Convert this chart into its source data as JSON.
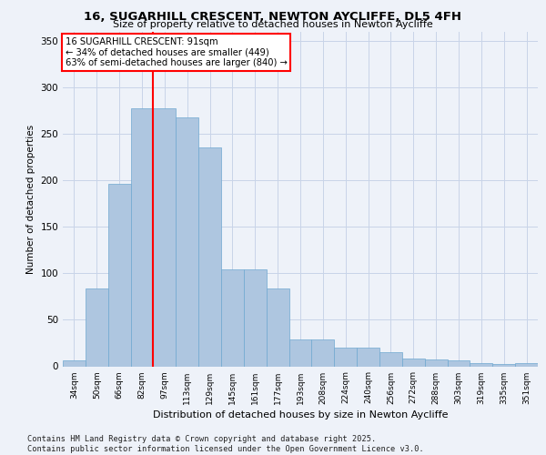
{
  "title": "16, SUGARHILL CRESCENT, NEWTON AYCLIFFE, DL5 4FH",
  "subtitle": "Size of property relative to detached houses in Newton Aycliffe",
  "xlabel": "Distribution of detached houses by size in Newton Aycliffe",
  "ylabel": "Number of detached properties",
  "categories": [
    "34sqm",
    "50sqm",
    "66sqm",
    "82sqm",
    "97sqm",
    "113sqm",
    "129sqm",
    "145sqm",
    "161sqm",
    "177sqm",
    "193sqm",
    "208sqm",
    "224sqm",
    "240sqm",
    "256sqm",
    "272sqm",
    "288sqm",
    "303sqm",
    "319sqm",
    "335sqm",
    "351sqm"
  ],
  "values": [
    6,
    84,
    196,
    278,
    278,
    268,
    236,
    104,
    104,
    84,
    29,
    29,
    20,
    20,
    15,
    8,
    7,
    6,
    3,
    2,
    3
  ],
  "bar_color": "#aec6e0",
  "bar_edge_color": "#6fa8d0",
  "vline_color": "red",
  "vline_pos": 3.5,
  "annotation_text": "16 SUGARHILL CRESCENT: 91sqm\n← 34% of detached houses are smaller (449)\n63% of semi-detached houses are larger (840) →",
  "ylim": [
    0,
    360
  ],
  "yticks": [
    0,
    50,
    100,
    150,
    200,
    250,
    300,
    350
  ],
  "background_color": "#eef2f9",
  "grid_color": "#c8d4e8",
  "title_fontsize": 9.5,
  "subtitle_fontsize": 8,
  "ylabel_text": "Number of detached properties",
  "footer": "Contains HM Land Registry data © Crown copyright and database right 2025.\nContains public sector information licensed under the Open Government Licence v3.0."
}
